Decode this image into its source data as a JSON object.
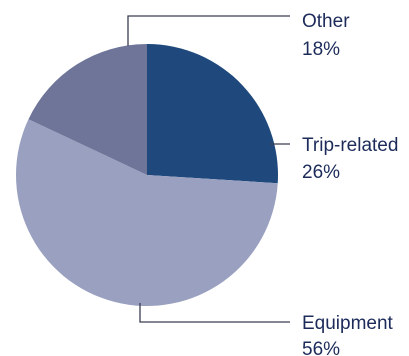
{
  "chart_data": {
    "type": "pie",
    "slices": [
      {
        "name": "Trip-related",
        "label": "26%",
        "value": 26,
        "color": "#1f497d"
      },
      {
        "name": "Equipment",
        "label": "56%",
        "value": 56,
        "color": "#9aa0bf"
      },
      {
        "name": "Other",
        "label": "18%",
        "value": 18,
        "color": "#6e7599"
      }
    ],
    "start_angle_deg": 0,
    "direction": "clockwise",
    "legend": "none",
    "labels": "outside-with-leader-lines"
  }
}
